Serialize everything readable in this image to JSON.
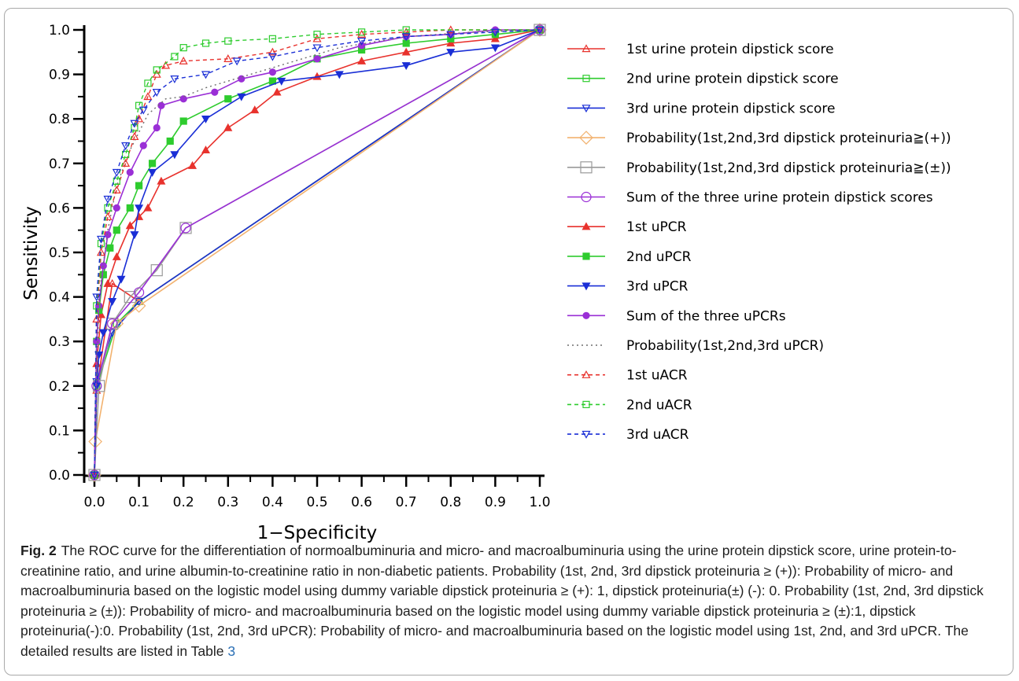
{
  "chart_data": {
    "type": "line",
    "xlabel": "1−Specificity",
    "ylabel": "Sensitivity",
    "xlim": [
      0,
      1
    ],
    "ylim": [
      0,
      1
    ],
    "x_ticks": [
      "0.0",
      "0.1",
      "0.2",
      "0.3",
      "0.4",
      "0.5",
      "0.6",
      "0.7",
      "0.8",
      "0.9",
      "1.0"
    ],
    "y_ticks": [
      "0.0",
      "0.1",
      "0.2",
      "0.3",
      "0.4",
      "0.5",
      "0.6",
      "0.7",
      "0.8",
      "0.9",
      "1.0"
    ],
    "grid": false,
    "legend_position": "right",
    "series": [
      {
        "name": "1st urine protein dipstick score",
        "color": "#e8322d",
        "dash": "solid",
        "marker": "triangle-up",
        "filled": false,
        "points": [
          [
            0,
            0
          ],
          [
            0.005,
            0.19
          ],
          [
            0.04,
            0.43
          ],
          [
            0.1,
            0.39
          ],
          [
            1,
            1
          ]
        ]
      },
      {
        "name": "2nd urine protein dipstick score",
        "color": "#2ecc2e",
        "dash": "solid",
        "marker": "square",
        "filled": false,
        "points": [
          [
            0,
            0
          ],
          [
            0.005,
            0.2
          ],
          [
            0.05,
            0.34
          ],
          [
            0.1,
            0.39
          ],
          [
            1,
            1
          ]
        ]
      },
      {
        "name": "3rd urine protein dipstick score",
        "color": "#1a2fd6",
        "dash": "solid",
        "marker": "triangle-down",
        "filled": false,
        "points": [
          [
            0,
            0
          ],
          [
            0.005,
            0.21
          ],
          [
            0.04,
            0.32
          ],
          [
            0.1,
            0.39
          ],
          [
            1,
            1
          ]
        ]
      },
      {
        "name": "Probability(1st,2nd,3rd dipstick proteinuria≧(+))",
        "color": "#f2b26f",
        "dash": "solid",
        "marker": "diamond",
        "filled": false,
        "points": [
          [
            0,
            0
          ],
          [
            0.002,
            0.075
          ],
          [
            0.05,
            0.34
          ],
          [
            0.1,
            0.38
          ],
          [
            1,
            1
          ]
        ]
      },
      {
        "name": "Probability(1st,2nd,3rd dipstick proteinuria≧(±))",
        "color": "#9a9a9a",
        "dash": "solid",
        "marker": "square-lg",
        "filled": false,
        "points": [
          [
            0,
            0
          ],
          [
            0.01,
            0.2
          ],
          [
            0.04,
            0.34
          ],
          [
            0.08,
            0.4
          ],
          [
            0.14,
            0.46
          ],
          [
            0.205,
            0.555
          ],
          [
            1,
            1
          ]
        ]
      },
      {
        "name": "Sum of  the three urine protein dipstick scores",
        "color": "#9a2fd6",
        "dash": "solid",
        "marker": "circle",
        "filled": false,
        "points": [
          [
            0,
            0
          ],
          [
            0.005,
            0.2
          ],
          [
            0.04,
            0.34
          ],
          [
            0.1,
            0.41
          ],
          [
            0.205,
            0.555
          ],
          [
            1,
            1
          ]
        ]
      },
      {
        "name": "1st uPCR",
        "color": "#e8322d",
        "dash": "solid",
        "marker": "triangle-up",
        "filled": true,
        "points": [
          [
            0,
            0
          ],
          [
            0.005,
            0.25
          ],
          [
            0.015,
            0.36
          ],
          [
            0.03,
            0.43
          ],
          [
            0.05,
            0.49
          ],
          [
            0.08,
            0.56
          ],
          [
            0.1,
            0.58
          ],
          [
            0.12,
            0.6
          ],
          [
            0.15,
            0.66
          ],
          [
            0.22,
            0.695
          ],
          [
            0.25,
            0.73
          ],
          [
            0.3,
            0.78
          ],
          [
            0.36,
            0.82
          ],
          [
            0.41,
            0.86
          ],
          [
            0.5,
            0.895
          ],
          [
            0.6,
            0.93
          ],
          [
            0.7,
            0.95
          ],
          [
            0.8,
            0.97
          ],
          [
            0.9,
            0.98
          ],
          [
            1,
            1
          ]
        ]
      },
      {
        "name": "2nd uPCR",
        "color": "#2ecc2e",
        "dash": "solid",
        "marker": "square",
        "filled": true,
        "points": [
          [
            0,
            0
          ],
          [
            0.005,
            0.3
          ],
          [
            0.01,
            0.37
          ],
          [
            0.02,
            0.45
          ],
          [
            0.035,
            0.51
          ],
          [
            0.05,
            0.55
          ],
          [
            0.08,
            0.6
          ],
          [
            0.1,
            0.65
          ],
          [
            0.13,
            0.7
          ],
          [
            0.17,
            0.75
          ],
          [
            0.2,
            0.795
          ],
          [
            0.3,
            0.845
          ],
          [
            0.4,
            0.885
          ],
          [
            0.5,
            0.935
          ],
          [
            0.6,
            0.955
          ],
          [
            0.7,
            0.97
          ],
          [
            0.8,
            0.98
          ],
          [
            0.9,
            0.99
          ],
          [
            1,
            1
          ]
        ]
      },
      {
        "name": "3rd uPCR",
        "color": "#1a2fd6",
        "dash": "solid",
        "marker": "triangle-down",
        "filled": true,
        "points": [
          [
            0,
            0
          ],
          [
            0.005,
            0.2
          ],
          [
            0.01,
            0.27
          ],
          [
            0.02,
            0.32
          ],
          [
            0.04,
            0.39
          ],
          [
            0.06,
            0.44
          ],
          [
            0.09,
            0.54
          ],
          [
            0.1,
            0.6
          ],
          [
            0.13,
            0.68
          ],
          [
            0.18,
            0.72
          ],
          [
            0.25,
            0.8
          ],
          [
            0.33,
            0.85
          ],
          [
            0.42,
            0.885
          ],
          [
            0.55,
            0.9
          ],
          [
            0.7,
            0.92
          ],
          [
            0.8,
            0.95
          ],
          [
            0.9,
            0.96
          ],
          [
            1,
            1
          ]
        ]
      },
      {
        "name": "Sum of the three uPCRs",
        "color": "#9a2fd6",
        "dash": "solid",
        "marker": "circle",
        "filled": true,
        "points": [
          [
            0,
            0
          ],
          [
            0.005,
            0.3
          ],
          [
            0.01,
            0.38
          ],
          [
            0.02,
            0.47
          ],
          [
            0.03,
            0.54
          ],
          [
            0.05,
            0.6
          ],
          [
            0.08,
            0.68
          ],
          [
            0.11,
            0.74
          ],
          [
            0.14,
            0.78
          ],
          [
            0.15,
            0.83
          ],
          [
            0.2,
            0.845
          ],
          [
            0.27,
            0.86
          ],
          [
            0.33,
            0.89
          ],
          [
            0.4,
            0.905
          ],
          [
            0.5,
            0.935
          ],
          [
            0.6,
            0.965
          ],
          [
            0.7,
            0.985
          ],
          [
            0.8,
            0.99
          ],
          [
            0.9,
            1
          ],
          [
            1,
            1
          ]
        ]
      },
      {
        "name": "Probability(1st,2nd,3rd uPCR)",
        "color": "#6e6e6e",
        "dash": "dotted",
        "marker": "none",
        "filled": false,
        "points": [
          [
            0,
            0
          ],
          [
            0.01,
            0.4
          ],
          [
            0.03,
            0.55
          ],
          [
            0.05,
            0.65
          ],
          [
            0.08,
            0.73
          ],
          [
            0.12,
            0.81
          ],
          [
            0.16,
            0.845
          ],
          [
            0.2,
            0.85
          ],
          [
            0.25,
            0.87
          ],
          [
            0.35,
            0.9
          ],
          [
            0.45,
            0.93
          ],
          [
            0.55,
            0.96
          ],
          [
            0.7,
            0.985
          ],
          [
            0.85,
            0.995
          ],
          [
            1,
            1
          ]
        ]
      },
      {
        "name": "1st uACR",
        "color": "#e8322d",
        "dash": "dashed",
        "marker": "triangle-up",
        "filled": false,
        "points": [
          [
            0,
            0
          ],
          [
            0.005,
            0.35
          ],
          [
            0.015,
            0.5
          ],
          [
            0.03,
            0.58
          ],
          [
            0.05,
            0.64
          ],
          [
            0.07,
            0.7
          ],
          [
            0.09,
            0.76
          ],
          [
            0.1,
            0.8
          ],
          [
            0.12,
            0.85
          ],
          [
            0.14,
            0.9
          ],
          [
            0.16,
            0.92
          ],
          [
            0.2,
            0.93
          ],
          [
            0.3,
            0.935
          ],
          [
            0.4,
            0.95
          ],
          [
            0.5,
            0.98
          ],
          [
            0.6,
            0.99
          ],
          [
            0.7,
            0.995
          ],
          [
            0.8,
            1
          ],
          [
            1,
            1
          ]
        ]
      },
      {
        "name": "2nd uACR",
        "color": "#2ecc2e",
        "dash": "dashed",
        "marker": "square",
        "filled": false,
        "points": [
          [
            0,
            0
          ],
          [
            0.005,
            0.38
          ],
          [
            0.015,
            0.52
          ],
          [
            0.03,
            0.6
          ],
          [
            0.05,
            0.66
          ],
          [
            0.07,
            0.72
          ],
          [
            0.09,
            0.78
          ],
          [
            0.1,
            0.83
          ],
          [
            0.12,
            0.88
          ],
          [
            0.14,
            0.91
          ],
          [
            0.18,
            0.94
          ],
          [
            0.2,
            0.96
          ],
          [
            0.25,
            0.97
          ],
          [
            0.3,
            0.975
          ],
          [
            0.4,
            0.98
          ],
          [
            0.5,
            0.99
          ],
          [
            0.6,
            0.995
          ],
          [
            0.7,
            1
          ],
          [
            1,
            1
          ]
        ]
      },
      {
        "name": "3rd uACR",
        "color": "#1a2fd6",
        "dash": "dashed",
        "marker": "triangle-down",
        "filled": false,
        "points": [
          [
            0,
            0
          ],
          [
            0.005,
            0.4
          ],
          [
            0.015,
            0.53
          ],
          [
            0.03,
            0.62
          ],
          [
            0.05,
            0.68
          ],
          [
            0.07,
            0.74
          ],
          [
            0.09,
            0.79
          ],
          [
            0.11,
            0.82
          ],
          [
            0.14,
            0.86
          ],
          [
            0.18,
            0.89
          ],
          [
            0.25,
            0.9
          ],
          [
            0.32,
            0.93
          ],
          [
            0.4,
            0.94
          ],
          [
            0.5,
            0.96
          ],
          [
            0.6,
            0.975
          ],
          [
            0.7,
            0.985
          ],
          [
            0.8,
            0.99
          ],
          [
            0.9,
            0.995
          ],
          [
            1,
            1
          ]
        ]
      }
    ]
  },
  "caption": {
    "label": "Fig. 2",
    "text": "The ROC curve for the differentiation of normoalbuminuria and micro- and macroalbuminuria using the urine protein dipstick score, urine protein-to-creatinine ratio, and urine albumin-to-creatinine ratio in non-diabetic patients. Probability (1st, 2nd, 3rd dipstick proteinuria ≥ (+)): Probability of micro- and macroalbuminuria based on the logistic model using dummy variable dipstick proteinuria ≥ (+): 1, dipstick proteinuria(±) (-): 0. Probability (1st, 2nd, 3rd dipstick proteinuria ≥ (±)): Probability of micro- and macroalbuminuria based on the logistic model using dummy variable dipstick proteinuria ≥ (±):1, dipstick proteinuria(-):0. Probability (1st, 2nd, 3rd uPCR): Probability of micro- and macroalbuminuria based on the logistic model using 1st, 2nd, and 3rd uPCR. The detailed results are listed in Table ",
    "table_ref": "3"
  }
}
